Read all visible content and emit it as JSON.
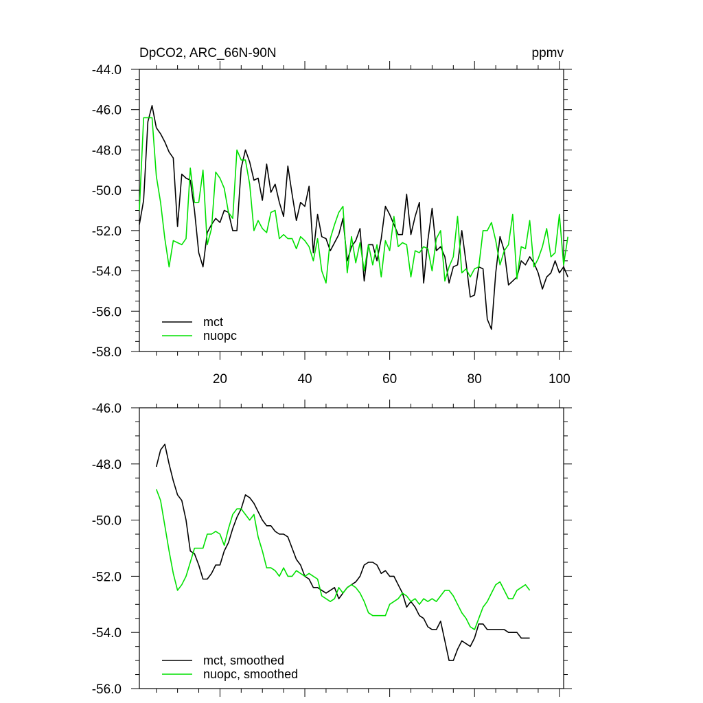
{
  "colors": {
    "mct": "#000000",
    "nuopc": "#00e000",
    "axis": "#000000",
    "background": "#ffffff"
  },
  "chart_data": [
    {
      "type": "line",
      "title_left": "DpCO2, ARC_66N-90N",
      "title_right": "ppmv",
      "xlim": [
        1,
        101
      ],
      "ylim": [
        -58,
        -44
      ],
      "x_ticks": [
        20,
        40,
        60,
        80,
        100
      ],
      "x_tick_labels": [
        "20",
        "40",
        "60",
        "80",
        "100"
      ],
      "y_ticks": [
        -58,
        -56,
        -54,
        -52,
        -50,
        -48,
        -46,
        -44
      ],
      "y_tick_labels": [
        "-58.0",
        "-56.0",
        "-54.0",
        "-52.0",
        "-50.0",
        "-48.0",
        "-46.0",
        "-44.0"
      ],
      "legend_position": "bottom-left",
      "series": [
        {
          "name": "mct",
          "x_start": 1,
          "values": [
            -51.7,
            -50.5,
            -46.6,
            -45.8,
            -46.9,
            -47.2,
            -47.6,
            -48.1,
            -48.4,
            -51.8,
            -49.2,
            -49.4,
            -49.5,
            -51.0,
            -53.1,
            -53.8,
            -52.1,
            -51.7,
            -51.4,
            -51.6,
            -51.0,
            -51.1,
            -52.0,
            -52.0,
            -48.9,
            -48.0,
            -48.6,
            -49.5,
            -49.4,
            -50.5,
            -48.7,
            -50.1,
            -49.7,
            -50.6,
            -51.3,
            -48.8,
            -50.2,
            -51.5,
            -50.6,
            -50.8,
            -49.8,
            -53.1,
            -51.2,
            -52.3,
            -52.4,
            -53.0,
            -52.6,
            -52.2,
            -51.4,
            -53.5,
            -52.8,
            -52.5,
            -51.9,
            -54.5,
            -52.7,
            -52.7,
            -53.5,
            -52.4,
            -50.8,
            -51.2,
            -51.7,
            -52.2,
            -52.2,
            -50.2,
            -52.2,
            -51.3,
            -50.6,
            -54.6,
            -52.5,
            -50.9,
            -53.0,
            -52.8,
            -53.3,
            -54.6,
            -53.8,
            -53.7,
            -52.0,
            -53.6,
            -55.3,
            -55.2,
            -53.8,
            -53.9,
            -56.4,
            -56.9,
            -54.1,
            -52.3,
            -53.0,
            -54.7,
            -54.5,
            -54.3,
            -53.5,
            -53.7,
            -53.3,
            -53.6,
            -54.1,
            -54.9,
            -54.3,
            -54.1,
            -53.5,
            -54.1,
            -53.8,
            -54.3
          ]
        },
        {
          "name": "nuopc",
          "x_start": 1,
          "values": [
            -51.0,
            -46.4,
            -46.4,
            -46.4,
            -49.3,
            -50.6,
            -52.4,
            -53.8,
            -52.5,
            -52.6,
            -52.7,
            -52.4,
            -48.9,
            -50.6,
            -50.6,
            -49.0,
            -52.7,
            -51.9,
            -49.1,
            -49.4,
            -49.9,
            -51.1,
            -51.4,
            -48.0,
            -48.5,
            -48.5,
            -49.7,
            -52.0,
            -51.5,
            -51.9,
            -52.1,
            -51.1,
            -51.0,
            -52.4,
            -52.2,
            -52.4,
            -52.4,
            -52.9,
            -52.3,
            -52.5,
            -52.8,
            -53.5,
            -52.4,
            -54.0,
            -54.6,
            -52.4,
            -51.7,
            -51.1,
            -50.8,
            -54.1,
            -52.3,
            -53.6,
            -52.6,
            -54.0,
            -52.7,
            -53.7,
            -52.7,
            -54.3,
            -52.5,
            -53.0,
            -51.3,
            -52.8,
            -52.6,
            -52.7,
            -54.3,
            -53.0,
            -53.1,
            -52.8,
            -52.9,
            -54.0,
            -52.4,
            -52.0,
            -54.5,
            -53.8,
            -53.3,
            -51.3,
            -54.1,
            -53.9,
            -54.3,
            -53.9,
            -53.8,
            -52.0,
            -52.0,
            -51.6,
            -52.5,
            -53.7,
            -53.0,
            -52.7,
            -51.2,
            -54.4,
            -52.8,
            -52.9,
            -51.5,
            -53.8,
            -53.4,
            -52.8,
            -51.9,
            -53.3,
            -53.1,
            -51.2,
            -53.7,
            -52.3
          ]
        }
      ]
    },
    {
      "type": "line",
      "xlim": [
        1,
        101
      ],
      "ylim": [
        -56,
        -46
      ],
      "x_ticks": [
        20,
        40,
        60,
        80,
        100
      ],
      "x_tick_labels": [],
      "y_ticks": [
        -56,
        -54,
        -52,
        -50,
        -48,
        -46
      ],
      "y_tick_labels": [
        "-56.0",
        "-54.0",
        "-52.0",
        "-50.0",
        "-48.0",
        "-46.0"
      ],
      "legend_position": "bottom-left",
      "series": [
        {
          "name": "mct, smoothed",
          "x_start": 5,
          "values": [
            -48.1,
            -47.5,
            -47.3,
            -48.0,
            -48.6,
            -49.1,
            -49.3,
            -50.0,
            -51.1,
            -51.2,
            -51.6,
            -52.1,
            -52.1,
            -51.9,
            -51.6,
            -51.6,
            -51.1,
            -50.8,
            -50.3,
            -49.9,
            -49.6,
            -49.1,
            -49.2,
            -49.4,
            -49.7,
            -50.0,
            -50.2,
            -50.2,
            -50.4,
            -50.5,
            -50.5,
            -50.6,
            -51.0,
            -51.4,
            -51.6,
            -52.0,
            -52.1,
            -52.4,
            -52.4,
            -52.5,
            -52.6,
            -52.5,
            -52.4,
            -52.8,
            -52.6,
            -52.4,
            -52.3,
            -52.2,
            -52.0,
            -51.6,
            -51.5,
            -51.5,
            -51.6,
            -51.9,
            -51.8,
            -52.0,
            -52.0,
            -52.3,
            -52.6,
            -53.1,
            -52.9,
            -53.1,
            -53.4,
            -53.5,
            -53.8,
            -53.9,
            -53.9,
            -53.6,
            -54.3,
            -55.0,
            -55.0,
            -54.6,
            -54.3,
            -54.4,
            -54.5,
            -54.2,
            -53.7,
            -53.7,
            -53.9,
            -53.9,
            -53.9,
            -53.9,
            -53.9,
            -54.0,
            -54.0,
            -54.0,
            -54.2,
            -54.2,
            -54.2
          ]
        },
        {
          "name": "nuopc, smoothed",
          "x_start": 5,
          "values": [
            -48.9,
            -49.3,
            -50.2,
            -51.1,
            -51.9,
            -52.5,
            -52.3,
            -52.0,
            -51.5,
            -51.0,
            -51.0,
            -51.0,
            -50.5,
            -50.5,
            -50.4,
            -50.5,
            -50.9,
            -50.3,
            -49.8,
            -49.6,
            -49.6,
            -49.8,
            -50.0,
            -49.8,
            -50.6,
            -51.1,
            -51.7,
            -51.7,
            -51.8,
            -52.0,
            -51.7,
            -52.0,
            -52.0,
            -51.8,
            -51.9,
            -52.0,
            -51.9,
            -52.0,
            -52.1,
            -52.7,
            -52.8,
            -52.9,
            -52.8,
            -52.4,
            -52.6,
            -52.4,
            -52.3,
            -52.4,
            -52.6,
            -52.9,
            -53.3,
            -53.4,
            -53.4,
            -53.4,
            -53.4,
            -53.0,
            -52.9,
            -52.8,
            -52.6,
            -52.7,
            -52.9,
            -52.8,
            -53.0,
            -52.8,
            -52.9,
            -52.8,
            -52.9,
            -52.7,
            -52.5,
            -52.5,
            -52.7,
            -53.0,
            -53.3,
            -53.5,
            -53.8,
            -53.9,
            -53.5,
            -53.1,
            -52.9,
            -52.6,
            -52.3,
            -52.2,
            -52.5,
            -52.8,
            -52.8,
            -52.5,
            -52.4,
            -52.3,
            -52.5
          ]
        }
      ]
    }
  ]
}
